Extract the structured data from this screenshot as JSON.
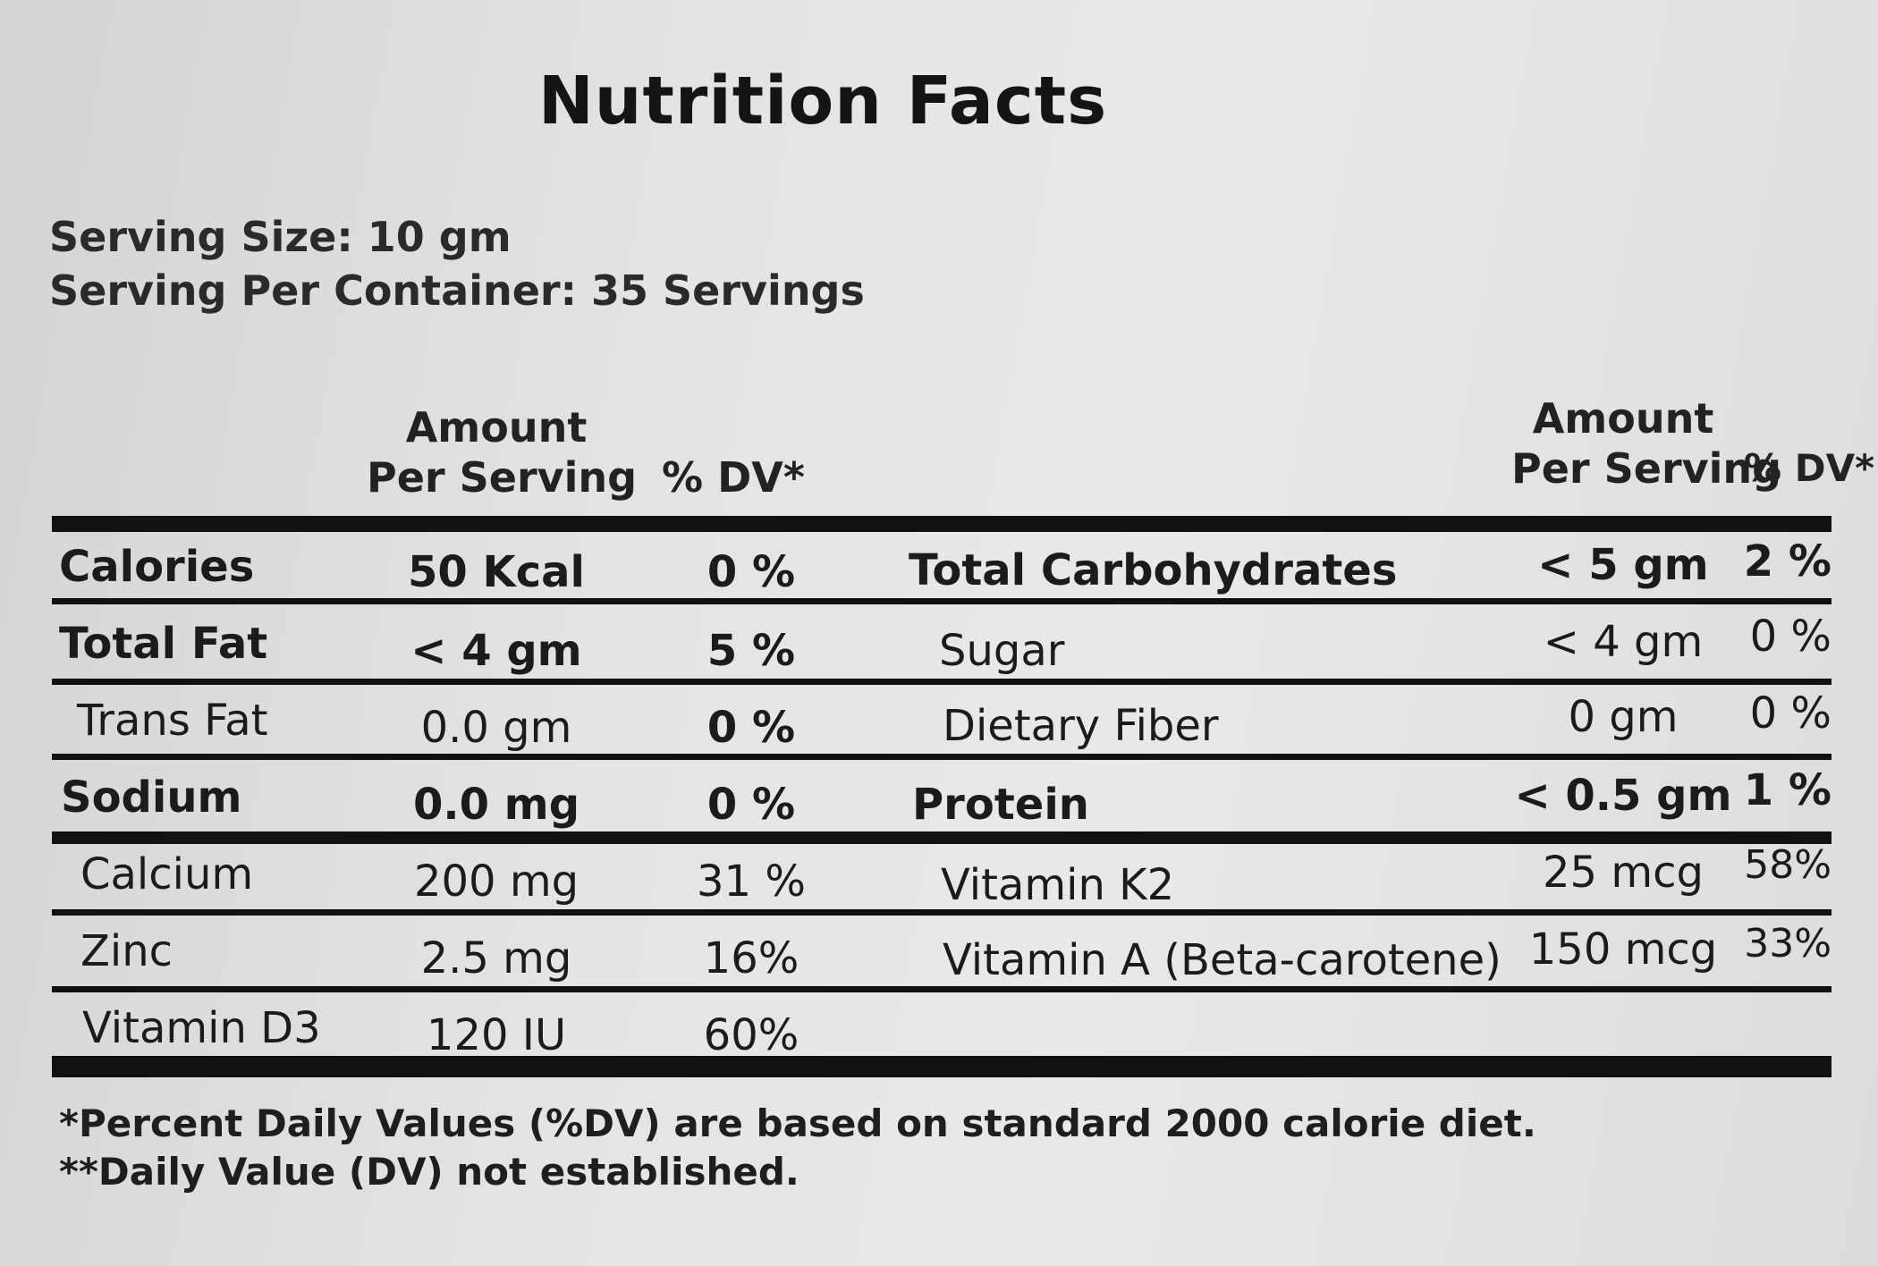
{
  "title": "Nutrition Facts",
  "serving_size": "Serving Size: 10 gm",
  "servings_per_container": "Serving Per Container: 35 Servings",
  "headers": {
    "left_amount": [
      "Amount",
      "Per Serving"
    ],
    "left_dv": "% DV*",
    "right_amount": [
      "Amount",
      "Per Serving"
    ],
    "right_dv": "% DV*"
  },
  "rows": [
    {
      "left": {
        "name": "Calories",
        "amount": "50 Kcal",
        "dv": "0 %",
        "bold": true,
        "indent": false
      },
      "right": {
        "name": "Total Carbohydrates",
        "amount": "< 5 gm",
        "dv": "2 %",
        "bold": true,
        "indent": false
      }
    },
    {
      "left": {
        "name": "Total Fat",
        "amount": "< 4 gm",
        "dv": "5 %",
        "bold": true,
        "indent": false
      },
      "right": {
        "name": "Sugar",
        "amount": "< 4 gm",
        "dv": "0 %",
        "bold": false,
        "indent": true
      }
    },
    {
      "left": {
        "name": "Trans Fat",
        "amount": "0.0 gm",
        "dv": "0 %",
        "bold": false,
        "indent": true
      },
      "right": {
        "name": "Dietary Fiber",
        "amount": "0 gm",
        "dv": "0 %",
        "bold": false,
        "indent": true
      }
    },
    {
      "left": {
        "name": "Sodium",
        "amount": "0.0 mg",
        "dv": "0 %",
        "bold": true,
        "indent": false
      },
      "right": {
        "name": "Protein",
        "amount": "< 0.5 gm",
        "dv": "1 %",
        "bold": true,
        "indent": false
      }
    },
    {
      "left": {
        "name": "Calcium",
        "amount": "200 mg",
        "dv": "31 %",
        "bold": false,
        "indent": true
      },
      "right": {
        "name": "Vitamin K2",
        "amount": "25 mcg",
        "dv": "58%",
        "bold": false,
        "indent": true
      }
    },
    {
      "left": {
        "name": "Zinc",
        "amount": "2.5 mg",
        "dv": "16%",
        "bold": false,
        "indent": true
      },
      "right": {
        "name": "Vitamin A (Beta-carotene)",
        "amount": "150 mcg",
        "dv": "33%",
        "bold": false,
        "indent": true
      }
    },
    {
      "left": {
        "name": "Vitamin D3",
        "amount": "120 IU",
        "dv": "60%",
        "bold": false,
        "indent": true
      },
      "right": null
    }
  ],
  "footnotes": [
    "*Percent Daily Values (%DV) are based on standard 2000 calorie diet.",
    "**Daily Value (DV) not established."
  ]
}
